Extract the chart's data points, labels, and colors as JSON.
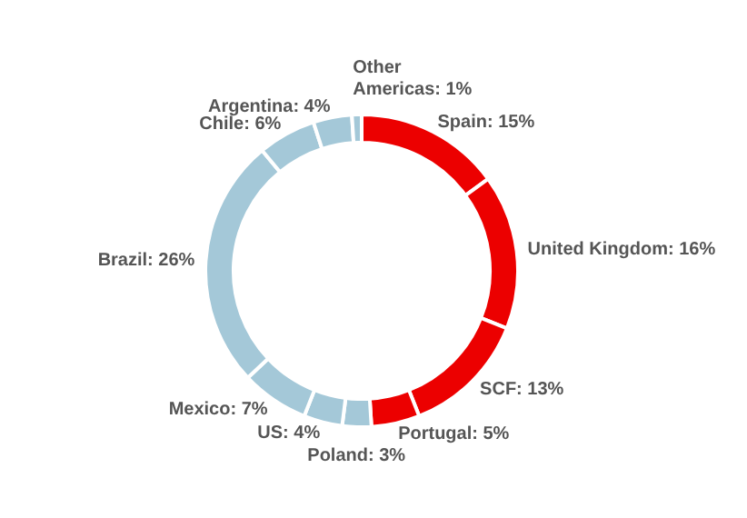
{
  "chart_data": {
    "type": "donut",
    "categories": [
      "Spain",
      "United Kingdom",
      "SCF",
      "Portugal",
      "Poland",
      "US",
      "Mexico",
      "Brazil",
      "Chile",
      "Argentina",
      "Other Americas"
    ],
    "values": [
      15,
      16,
      13,
      5,
      3,
      4,
      7,
      26,
      6,
      4,
      1
    ],
    "value_labels": [
      "15%",
      "16%",
      "13%",
      "5%",
      "3%",
      "4%",
      "7%",
      "26%",
      "6%",
      "4%",
      "1%"
    ],
    "colors": [
      "#ec0000",
      "#ec0000",
      "#ec0000",
      "#ec0000",
      "#a4c8d8",
      "#a4c8d8",
      "#a4c8d8",
      "#a4c8d8",
      "#a4c8d8",
      "#a4c8d8",
      "#a4c8d8"
    ],
    "legend": false
  }
}
